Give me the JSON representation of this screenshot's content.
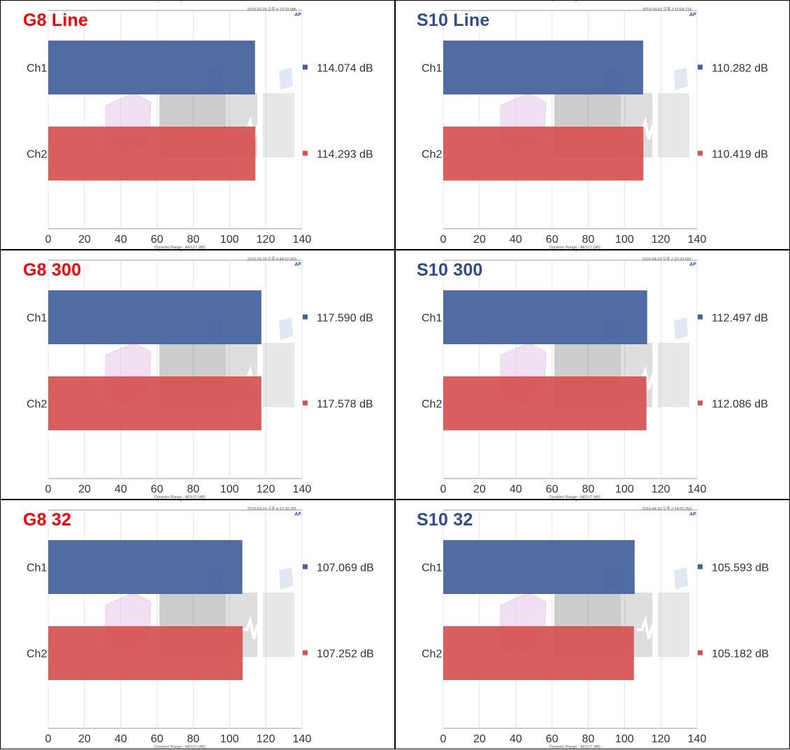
{
  "chart_data": [
    {
      "type": "bar",
      "orientation": "horizontal",
      "panel_title": "G8 Line",
      "title_color": "#ff0000",
      "header": "Dynamic Range - AES17",
      "timestamp": "2019-03-26 오후 4:19:29.586",
      "xlabel": "Dynamic Range - AES17 (dB)",
      "categories": [
        "Ch1",
        "Ch2"
      ],
      "values": [
        114.074,
        114.293
      ],
      "value_labels": [
        "114.074 dB",
        "114.293 dB"
      ],
      "xlim": [
        0,
        140
      ],
      "xticks": [
        0,
        20,
        40,
        60,
        80,
        100,
        120,
        140
      ]
    },
    {
      "type": "bar",
      "orientation": "horizontal",
      "panel_title": "S10 Line",
      "title_color": "#2e4c8e",
      "header": "Dynamic Range - AES17",
      "timestamp": "2019-04-03 오후 2:11:04.714",
      "xlabel": "Dynamic Range - AES17 (dB)",
      "categories": [
        "Ch1",
        "Ch2"
      ],
      "values": [
        110.282,
        110.419
      ],
      "value_labels": [
        "110.282 dB",
        "110.419 dB"
      ],
      "xlim": [
        0,
        140
      ],
      "xticks": [
        0,
        20,
        40,
        60,
        80,
        100,
        120,
        140
      ]
    },
    {
      "type": "bar",
      "orientation": "horizontal",
      "panel_title": "G8 300",
      "title_color": "#ff0000",
      "header": "Dynamic Range - AES17",
      "timestamp": "2019-03-26 오후 4:44:02.003",
      "xlabel": "Dynamic Range - AES17 (dB)",
      "categories": [
        "Ch1",
        "Ch2"
      ],
      "values": [
        117.59,
        117.578
      ],
      "value_labels": [
        "117.590 dB",
        "117.578 dB"
      ],
      "xlim": [
        0,
        140
      ],
      "xticks": [
        0,
        20,
        40,
        60,
        80,
        100,
        120,
        140
      ]
    },
    {
      "type": "bar",
      "orientation": "horizontal",
      "panel_title": "S10 300",
      "title_color": "#2e4c8e",
      "header": "Dynamic Range - AES17",
      "timestamp": "2019-04-03 오후 2:32:29.692",
      "xlabel": "Dynamic Range - AES17 (dB)",
      "categories": [
        "Ch1",
        "Ch2"
      ],
      "values": [
        112.497,
        112.086
      ],
      "value_labels": [
        "112.497 dB",
        "112.086 dB"
      ],
      "xlim": [
        0,
        140
      ],
      "xticks": [
        0,
        20,
        40,
        60,
        80,
        100,
        120,
        140
      ]
    },
    {
      "type": "bar",
      "orientation": "horizontal",
      "panel_title": "G8 32",
      "title_color": "#ff0000",
      "header": "Dynamic Range - AES17",
      "timestamp": "2019-03-26 오후 4:31:38.201",
      "xlabel": "Dynamic Range - AES17 (dB)",
      "categories": [
        "Ch1",
        "Ch2"
      ],
      "values": [
        107.069,
        107.252
      ],
      "value_labels": [
        "107.069 dB",
        "107.252 dB"
      ],
      "xlim": [
        0,
        140
      ],
      "xticks": [
        0,
        20,
        40,
        60,
        80,
        100,
        120,
        140
      ]
    },
    {
      "type": "bar",
      "orientation": "horizontal",
      "panel_title": "S10 32",
      "title_color": "#2e4c8e",
      "header": "Dynamic Range - AES17",
      "timestamp": "2019-04-03 오후 2:24:55.259",
      "xlabel": "Dynamic Range - AES17 (dB)",
      "categories": [
        "Ch1",
        "Ch2"
      ],
      "values": [
        105.593,
        105.182
      ],
      "value_labels": [
        "105.593 dB",
        "105.182 dB"
      ],
      "xlim": [
        0,
        140
      ],
      "xticks": [
        0,
        20,
        40,
        60,
        80,
        100,
        120,
        140
      ]
    }
  ],
  "colors": {
    "ch1": "#44609c",
    "ch2": "#d65252",
    "grid": "#e4e4e4",
    "axis": "#9a9a9a",
    "text": "#333333"
  },
  "brand": {
    "badge": "AP"
  }
}
